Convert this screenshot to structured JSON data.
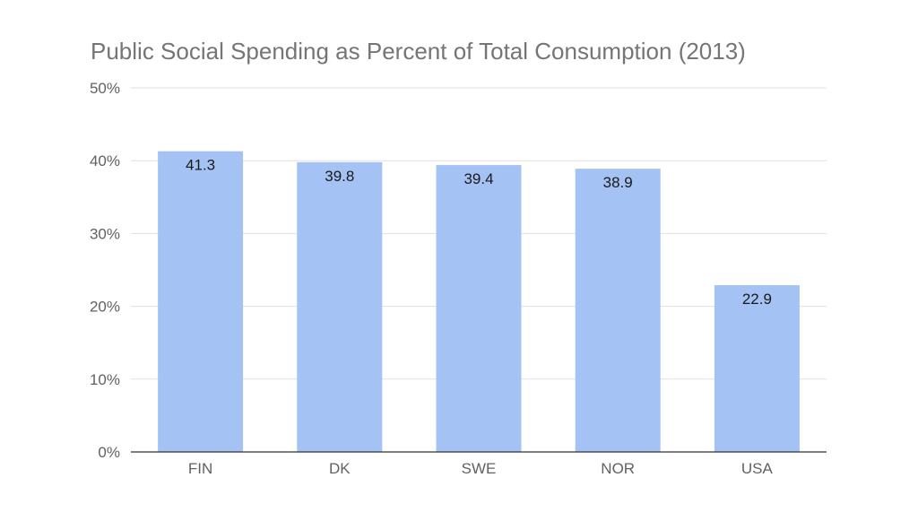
{
  "chart_data": {
    "type": "bar",
    "title": "Public Social Spending as Percent of Total Consumption (2013)",
    "categories": [
      "FIN",
      "DK",
      "SWE",
      "NOR",
      "USA"
    ],
    "values": [
      41.3,
      39.8,
      39.4,
      38.9,
      22.9
    ],
    "data_labels": [
      "41.3",
      "39.8",
      "39.4",
      "38.9",
      "22.9"
    ],
    "yticks": [
      0,
      10,
      20,
      30,
      40,
      50
    ],
    "ytick_labels": [
      "0%",
      "10%",
      "20%",
      "30%",
      "40%",
      "50%"
    ],
    "ylim": [
      0,
      50
    ],
    "xlabel": "",
    "ylabel": "",
    "grid": true,
    "legend": "none",
    "colors": {
      "bar": "#a4c2f4",
      "grid": "#e0e0e0",
      "axis": "#333333"
    }
  }
}
